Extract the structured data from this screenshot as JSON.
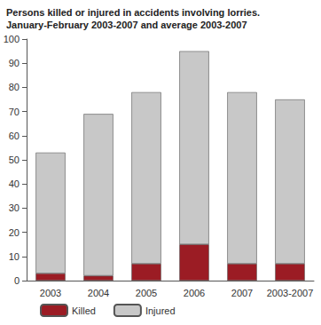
{
  "chart_data": {
    "type": "bar",
    "title": "Persons killed or injured in accidents involving lorries.\nJanuary-February 2003-2007 and average 2003-2007",
    "categories": [
      "2003",
      "2004",
      "2005",
      "2006",
      "2007",
      "2003-2007"
    ],
    "series": [
      {
        "name": "Killed",
        "color": "#9b1c24",
        "values": [
          3,
          2,
          7,
          15,
          7,
          7
        ]
      },
      {
        "name": "Injured",
        "color": "#c8c8c8",
        "values": [
          50,
          67,
          71,
          80,
          71,
          68
        ]
      }
    ],
    "stacked": true,
    "ylim": [
      0,
      100
    ],
    "yticks": [
      0,
      10,
      20,
      30,
      40,
      50,
      60,
      70,
      80,
      90,
      100
    ],
    "grid": false,
    "legend": "bottom"
  }
}
